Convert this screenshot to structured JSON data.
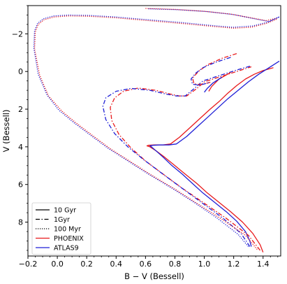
{
  "chart_data": {
    "type": "line",
    "title": "",
    "xlabel": "B − V (Bessell)",
    "ylabel": "V (Bessell)",
    "xlim": [
      -0.2,
      1.52
    ],
    "ylim": [
      9.8,
      -3.5
    ],
    "y_inverted": true,
    "grid": false,
    "legend_position": "lower-left",
    "x_ticks": [
      -0.2,
      0.0,
      0.2,
      0.4,
      0.6,
      0.8,
      1.0,
      1.2,
      1.4
    ],
    "x_tick_labels": [
      "−0.2",
      "0.0",
      "0.2",
      "0.4",
      "0.6",
      "0.8",
      "1.0",
      "1.2",
      "1.4"
    ],
    "y_ticks": [
      -2,
      0,
      2,
      4,
      6,
      8
    ],
    "y_tick_labels": [
      "−2",
      "0",
      "2",
      "4",
      "6",
      "8"
    ],
    "legend": [
      {
        "label": "10 Gyr",
        "kind": "line",
        "dash": "solid",
        "color": "#000000"
      },
      {
        "label": "1Gyr",
        "kind": "line",
        "dash": "dashdot",
        "color": "#000000"
      },
      {
        "label": "100 Myr",
        "kind": "line",
        "dash": "dotted",
        "color": "#000000"
      },
      {
        "label": "PHOENIX",
        "kind": "line",
        "dash": "solid",
        "color": "#e8191b"
      },
      {
        "label": "ATLAS9",
        "kind": "line",
        "dash": "solid",
        "color": "#1f1fd6"
      }
    ],
    "series": [
      {
        "name": "10 Gyr PHOENIX",
        "age": "10 Gyr",
        "model": "PHOENIX",
        "color": "#e8191b",
        "dash": "solid",
        "x": [
          1.4,
          1.38,
          1.33,
          1.26,
          1.18,
          1.1,
          1.02,
          0.95,
          0.87,
          0.8,
          0.73,
          0.67,
          0.63,
          0.61,
          0.62,
          0.66,
          0.72,
          0.77,
          0.83,
          0.9,
          0.97,
          1.04,
          1.1,
          1.16,
          1.22,
          1.28,
          1.34,
          1.4,
          1.47
        ],
        "y": [
          9.6,
          9.2,
          8.6,
          8.0,
          7.45,
          6.95,
          6.45,
          5.95,
          5.45,
          5.0,
          4.55,
          4.2,
          4.0,
          3.95,
          3.92,
          3.9,
          3.9,
          3.85,
          3.5,
          3.0,
          2.5,
          2.0,
          1.6,
          1.15,
          0.75,
          0.4,
          0.15,
          -0.05,
          -0.2
        ]
      },
      {
        "name": "10 Gyr ATLAS9",
        "age": "10 Gyr",
        "model": "ATLAS9",
        "color": "#1f1fd6",
        "dash": "solid",
        "x": [
          1.32,
          1.31,
          1.28,
          1.22,
          1.15,
          1.07,
          0.99,
          0.92,
          0.85,
          0.78,
          0.72,
          0.67,
          0.64,
          0.63,
          0.65,
          0.7,
          0.76,
          0.81,
          0.88,
          0.95,
          1.02,
          1.09,
          1.16,
          1.23,
          1.3,
          1.37,
          1.44,
          1.51
        ],
        "y": [
          9.3,
          9.0,
          8.5,
          7.95,
          7.45,
          6.95,
          6.45,
          5.95,
          5.45,
          5.0,
          4.55,
          4.2,
          4.0,
          3.95,
          3.92,
          3.9,
          3.9,
          3.85,
          3.45,
          2.95,
          2.45,
          1.95,
          1.45,
          1.0,
          0.55,
          0.15,
          -0.2,
          -0.55
        ]
      },
      {
        "name": "1Gyr PHOENIX",
        "age": "1Gyr",
        "model": "PHOENIX",
        "color": "#e8191b",
        "dash": "dashdot",
        "x": [
          1.38,
          1.3,
          1.15,
          1.0,
          0.85,
          0.72,
          0.6,
          0.5,
          0.42,
          0.37,
          0.36,
          0.39,
          0.45,
          0.55,
          0.67,
          0.77,
          0.83,
          0.88,
          0.95,
          1.0,
          1.08,
          1.16,
          1.24,
          1.32
        ],
        "y": [
          9.5,
          8.7,
          7.8,
          7.0,
          6.2,
          5.45,
          4.75,
          4.05,
          3.35,
          2.6,
          1.9,
          1.4,
          1.05,
          0.88,
          1.0,
          1.2,
          1.3,
          1.3,
          0.9,
          0.55,
          0.35,
          0.15,
          -0.05,
          -0.25
        ]
      },
      {
        "name": "1Gyr ATLAS9",
        "age": "1Gyr",
        "model": "ATLAS9",
        "color": "#1f1fd6",
        "dash": "dashdot",
        "x": [
          1.31,
          1.25,
          1.12,
          0.98,
          0.84,
          0.71,
          0.59,
          0.48,
          0.39,
          0.33,
          0.31,
          0.33,
          0.4,
          0.5,
          0.63,
          0.74,
          0.81,
          0.87,
          0.94,
          0.99,
          1.07,
          1.15,
          1.23,
          1.32
        ],
        "y": [
          9.3,
          8.6,
          7.75,
          6.95,
          6.15,
          5.4,
          4.7,
          4.0,
          3.3,
          2.55,
          1.85,
          1.4,
          1.05,
          0.9,
          1.0,
          1.2,
          1.3,
          1.3,
          0.85,
          0.5,
          0.3,
          0.1,
          -0.1,
          -0.3
        ]
      },
      {
        "name": "100 Myr PHOENIX",
        "age": "100 Myr",
        "model": "PHOENIX",
        "color": "#e8191b",
        "dash": "dotted",
        "x": [
          1.36,
          1.28,
          1.12,
          0.96,
          0.8,
          0.64,
          0.5,
          0.36,
          0.24,
          0.13,
          0.03,
          -0.06,
          -0.12,
          -0.155,
          -0.15,
          -0.13,
          -0.09,
          -0.02,
          0.08,
          0.22,
          0.4,
          0.62,
          0.85,
          1.05,
          1.2,
          1.32,
          1.42,
          1.5
        ],
        "y": [
          9.45,
          8.7,
          7.85,
          7.05,
          6.25,
          5.5,
          4.8,
          4.1,
          3.4,
          2.75,
          2.1,
          1.3,
          0.2,
          -1.2,
          -2.1,
          -2.5,
          -2.75,
          -2.9,
          -2.95,
          -2.93,
          -2.85,
          -2.7,
          -2.55,
          -2.4,
          -2.3,
          -2.35,
          -2.55,
          -2.8
        ]
      },
      {
        "name": "100 Myr ATLAS9",
        "age": "100 Myr",
        "model": "ATLAS9",
        "color": "#1f1fd6",
        "dash": "dotted",
        "x": [
          1.3,
          1.23,
          1.09,
          0.94,
          0.78,
          0.62,
          0.48,
          0.34,
          0.22,
          0.11,
          0.01,
          -0.07,
          -0.13,
          -0.16,
          -0.155,
          -0.135,
          -0.095,
          -0.025,
          0.075,
          0.215,
          0.395,
          0.615,
          0.845,
          1.045,
          1.195,
          1.33,
          1.43,
          1.51
        ],
        "y": [
          9.3,
          8.65,
          7.8,
          7.0,
          6.2,
          5.45,
          4.75,
          4.05,
          3.35,
          2.7,
          2.05,
          1.25,
          0.15,
          -1.25,
          -2.15,
          -2.55,
          -2.8,
          -2.95,
          -3.0,
          -2.98,
          -2.9,
          -2.75,
          -2.6,
          -2.45,
          -2.35,
          -2.42,
          -2.62,
          -2.9
        ]
      },
      {
        "name": "100 Myr PHOENIX (upper branch)",
        "age": "100 Myr",
        "model": "PHOENIX",
        "color": "#e8191b",
        "dash": "dotted",
        "x": [
          0.6,
          0.8,
          1.0,
          1.18,
          1.32,
          1.42,
          1.5
        ],
        "y": [
          -3.35,
          -3.3,
          -3.2,
          -3.05,
          -2.85,
          -2.7,
          -2.85
        ]
      },
      {
        "name": "100 Myr ATLAS9 (upper branch)",
        "age": "100 Myr",
        "model": "ATLAS9",
        "color": "#1f1fd6",
        "dash": "dotted",
        "x": [
          0.62,
          0.82,
          1.02,
          1.2,
          1.34,
          1.44,
          1.51
        ],
        "y": [
          -3.33,
          -3.28,
          -3.18,
          -3.02,
          -2.8,
          -2.65,
          -2.9
        ]
      },
      {
        "name": "1Gyr PHOENIX (upper loop)",
        "age": "1Gyr",
        "model": "PHOENIX",
        "color": "#e8191b",
        "dash": "dashdot",
        "x": [
          1.22,
          1.12,
          1.02,
          0.96,
          0.92,
          0.93,
          0.98,
          1.05
        ],
        "y": [
          -0.95,
          -0.7,
          -0.35,
          0.0,
          0.35,
          0.65,
          0.7,
          0.55
        ]
      },
      {
        "name": "1Gyr ATLAS9 (upper loop)",
        "age": "1Gyr",
        "model": "ATLAS9",
        "color": "#1f1fd6",
        "dash": "dashdot",
        "x": [
          1.18,
          1.08,
          0.99,
          0.94,
          0.91,
          0.92,
          0.97,
          1.04
        ],
        "y": [
          -0.75,
          -0.5,
          -0.2,
          0.1,
          0.4,
          0.68,
          0.72,
          0.58
        ]
      },
      {
        "name": "10 Gyr PHOENIX (clump)",
        "age": "10 Gyr",
        "model": "PHOENIX",
        "color": "#e8191b",
        "dash": "solid",
        "x": [
          1.18,
          1.1,
          1.05,
          1.03
        ],
        "y": [
          0.05,
          0.4,
          0.8,
          1.05
        ]
      },
      {
        "name": "10 Gyr ATLAS9 (clump)",
        "age": "10 Gyr",
        "model": "ATLAS9",
        "color": "#1f1fd6",
        "dash": "solid",
        "x": [
          1.12,
          1.06,
          1.02,
          1.0
        ],
        "y": [
          0.3,
          0.6,
          0.9,
          1.1
        ]
      }
    ]
  }
}
